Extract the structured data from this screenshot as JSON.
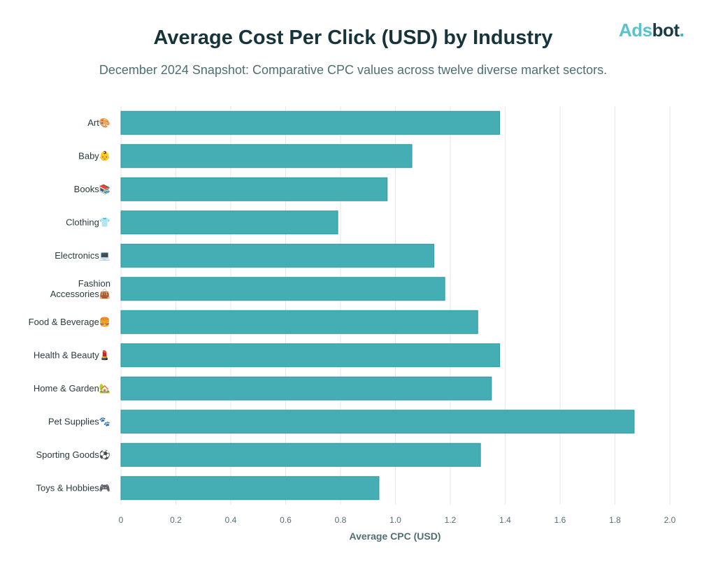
{
  "title": "Average Cost Per Click (USD) by Industry",
  "subtitle": "December 2024 Snapshot: Comparative CPC values across twelve diverse market sectors.",
  "logo": {
    "part1": "Ads",
    "part2": "bot",
    "dot": "."
  },
  "chart_data": {
    "type": "bar",
    "orientation": "horizontal",
    "title": "Average Cost Per Click (USD) by Industry",
    "subtitle": "December 2024 Snapshot: Comparative CPC values across twelve diverse market sectors.",
    "xlabel": "Average CPC (USD)",
    "ylabel": "",
    "xlim": [
      0,
      2.0
    ],
    "xticks": [
      "0",
      "0.2",
      "0.4",
      "0.6",
      "0.8",
      "1.0",
      "1.2",
      "1.4",
      "1.6",
      "1.8",
      "2.0"
    ],
    "grid": true,
    "bar_color": "#45aeb5",
    "categories": [
      [
        "Art🎨"
      ],
      [
        "Baby👶"
      ],
      [
        "Books📚"
      ],
      [
        "Clothing👕"
      ],
      [
        "Electronics💻"
      ],
      [
        "Fashion",
        "Accessories👜"
      ],
      [
        "Food & Beverage🍔"
      ],
      [
        "Health & Beauty💄"
      ],
      [
        "Home & Garden🏡"
      ],
      [
        "Pet Supplies🐾"
      ],
      [
        "Sporting Goods⚽"
      ],
      [
        "Toys & Hobbies🎮"
      ]
    ],
    "values": [
      1.38,
      1.06,
      0.97,
      0.79,
      1.14,
      1.18,
      1.3,
      1.38,
      1.35,
      1.87,
      1.31,
      0.94
    ]
  }
}
